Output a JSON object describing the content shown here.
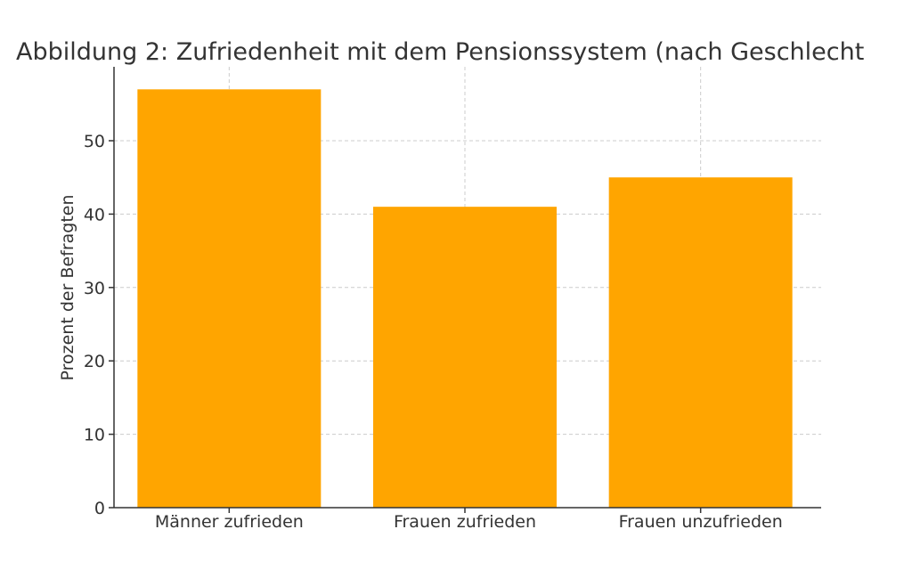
{
  "chart_data": {
    "type": "bar",
    "title": "Abbildung 2: Zufriedenheit mit dem Pensionssystem (nach Geschlecht",
    "xlabel": "",
    "ylabel": "Prozent der Befragten",
    "categories": [
      "Männer zufrieden",
      "Frauen zufrieden",
      "Frauen unzufrieden"
    ],
    "values": [
      57,
      41,
      45
    ],
    "ylim": [
      0,
      60
    ],
    "yticks": [
      0,
      10,
      20,
      30,
      40,
      50
    ],
    "grid": true,
    "bar_color": "#FFA500"
  }
}
